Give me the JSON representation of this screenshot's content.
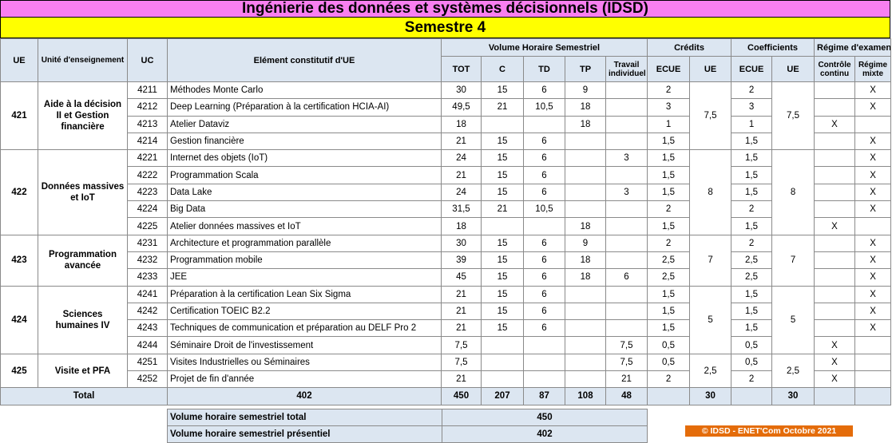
{
  "title": "Ingénierie des données et systèmes décisionnels (IDSD)",
  "semester": "Semestre 4",
  "headers": {
    "ue": "UE",
    "unite": "Unité d'enseignement",
    "uc": "UC",
    "element": "Elément constitutif d'UE",
    "volume": "Volume Horaire Semestriel",
    "credits": "Crédits",
    "coefficients": "Coefficients",
    "regime": "Régime d'examen",
    "tot": "TOT",
    "c": "C",
    "td": "TD",
    "tp": "TP",
    "travail": "Travail individuel",
    "ecue": "ECUE",
    "ue_sub": "UE",
    "controle": "Contrôle continu",
    "mixte": "Régime mixte"
  },
  "groups": [
    {
      "ue": "421",
      "name": "Aide à la décision II et Gestion financière",
      "credits": "7,5",
      "coef": "7,5",
      "rows": [
        {
          "uc": "4211",
          "el": "Méthodes Monte Carlo",
          "tot": "30",
          "c": "15",
          "td": "6",
          "tp": "9",
          "ti": "",
          "cr": "2",
          "co": "2",
          "cc": "",
          "rm": "X"
        },
        {
          "uc": "4212",
          "el": "Deep Learning  (Préparation à la certification HCIA-AI)",
          "tot": "49,5",
          "c": "21",
          "td": "10,5",
          "tp": "18",
          "ti": "",
          "cr": "3",
          "co": "3",
          "cc": "",
          "rm": "X"
        },
        {
          "uc": "4213",
          "el": "Atelier Dataviz",
          "tot": "18",
          "c": "",
          "td": "",
          "tp": "18",
          "ti": "",
          "cr": "1",
          "co": "1",
          "cc": "X",
          "rm": ""
        },
        {
          "uc": "4214",
          "el": "Gestion financière",
          "tot": "21",
          "c": "15",
          "td": "6",
          "tp": "",
          "ti": "",
          "cr": "1,5",
          "co": "1,5",
          "cc": "",
          "rm": "X"
        }
      ]
    },
    {
      "ue": "422",
      "name": "Données massives et IoT",
      "credits": "8",
      "coef": "8",
      "rows": [
        {
          "uc": "4221",
          "el": "Internet des objets (IoT)",
          "tot": "24",
          "c": "15",
          "td": "6",
          "tp": "",
          "ti": "3",
          "cr": "1,5",
          "co": "1,5",
          "cc": "",
          "rm": "X"
        },
        {
          "uc": "4222",
          "el": "Programmation Scala",
          "tot": "21",
          "c": "15",
          "td": "6",
          "tp": "",
          "ti": "",
          "cr": "1,5",
          "co": "1,5",
          "cc": "",
          "rm": "X"
        },
        {
          "uc": "4223",
          "el": "Data Lake",
          "tot": "24",
          "c": "15",
          "td": "6",
          "tp": "",
          "ti": "3",
          "cr": "1,5",
          "co": "1,5",
          "cc": "",
          "rm": "X"
        },
        {
          "uc": "4224",
          "el": "Big Data",
          "tot": "31,5",
          "c": "21",
          "td": "10,5",
          "tp": "",
          "ti": "",
          "cr": "2",
          "co": "2",
          "cc": "",
          "rm": "X"
        },
        {
          "uc": "4225",
          "el": "Atelier données massives et IoT",
          "tot": "18",
          "c": "",
          "td": "",
          "tp": "18",
          "ti": "",
          "cr": "1,5",
          "co": "1,5",
          "cc": "X",
          "rm": ""
        }
      ]
    },
    {
      "ue": "423",
      "name": "Programmation avancée",
      "credits": "7",
      "coef": "7",
      "rows": [
        {
          "uc": "4231",
          "el": "Architecture et programmation parallèle",
          "tot": "30",
          "c": "15",
          "td": "6",
          "tp": "9",
          "ti": "",
          "cr": "2",
          "co": "2",
          "cc": "",
          "rm": "X"
        },
        {
          "uc": "4232",
          "el": "Programmation mobile",
          "tot": "39",
          "c": "15",
          "td": "6",
          "tp": "18",
          "ti": "",
          "cr": "2,5",
          "co": "2,5",
          "cc": "",
          "rm": "X"
        },
        {
          "uc": "4233",
          "el": "JEE",
          "tot": "45",
          "c": "15",
          "td": "6",
          "tp": "18",
          "ti": "6",
          "cr": "2,5",
          "co": "2,5",
          "cc": "",
          "rm": "X"
        }
      ]
    },
    {
      "ue": "424",
      "name": "Sciences humaines IV",
      "credits": "5",
      "coef": "5",
      "rows": [
        {
          "uc": "4241",
          "el": "Préparation à la certification Lean Six Sigma",
          "tot": "21",
          "c": "15",
          "td": "6",
          "tp": "",
          "ti": "",
          "cr": "1,5",
          "co": "1,5",
          "cc": "",
          "rm": "X"
        },
        {
          "uc": "4242",
          "el": "Certification TOEIC B2.2",
          "tot": "21",
          "c": "15",
          "td": "6",
          "tp": "",
          "ti": "",
          "cr": "1,5",
          "co": "1,5",
          "cc": "",
          "rm": "X"
        },
        {
          "uc": "4243",
          "el": "Techniques de communication et préparation au DELF Pro 2",
          "tot": "21",
          "c": "15",
          "td": "6",
          "tp": "",
          "ti": "",
          "cr": "1,5",
          "co": "1,5",
          "cc": "",
          "rm": "X"
        },
        {
          "uc": "4244",
          "el": "Séminaire Droit de l'investissement",
          "tot": "7,5",
          "c": "",
          "td": "",
          "tp": "",
          "ti": "7,5",
          "cr": "0,5",
          "co": "0,5",
          "cc": "X",
          "rm": ""
        }
      ]
    },
    {
      "ue": "425",
      "name": "Visite et PFA",
      "credits": "2,5",
      "coef": "2,5",
      "rows": [
        {
          "uc": "4251",
          "el": "Visites Industrielles ou Séminaires",
          "tot": "7,5",
          "c": "",
          "td": "",
          "tp": "",
          "ti": "7,5",
          "cr": "0,5",
          "co": "0,5",
          "cc": "X",
          "rm": ""
        },
        {
          "uc": "4252",
          "el": "Projet de fin d'année",
          "tot": "21",
          "c": "",
          "td": "",
          "tp": "",
          "ti": "21",
          "cr": "2",
          "co": "2",
          "cc": "X",
          "rm": ""
        }
      ]
    }
  ],
  "total": {
    "label": "Total",
    "el": "402",
    "tot": "450",
    "c": "207",
    "td": "87",
    "tp": "108",
    "ti": "48",
    "credits": "30",
    "coef": "30"
  },
  "summary": [
    {
      "label": "Volume horaire semestriel total",
      "value": "450"
    },
    {
      "label": "Volume horaire semestriel présentiel",
      "value": "402"
    }
  ],
  "footer": "© IDSD - ENET'Com Octobre 2021",
  "colors": {
    "title_bg": "#f87ff0",
    "semester_bg": "#ffff00",
    "header_bg": "#dce6f1",
    "footer_bg": "#e46c0a"
  }
}
